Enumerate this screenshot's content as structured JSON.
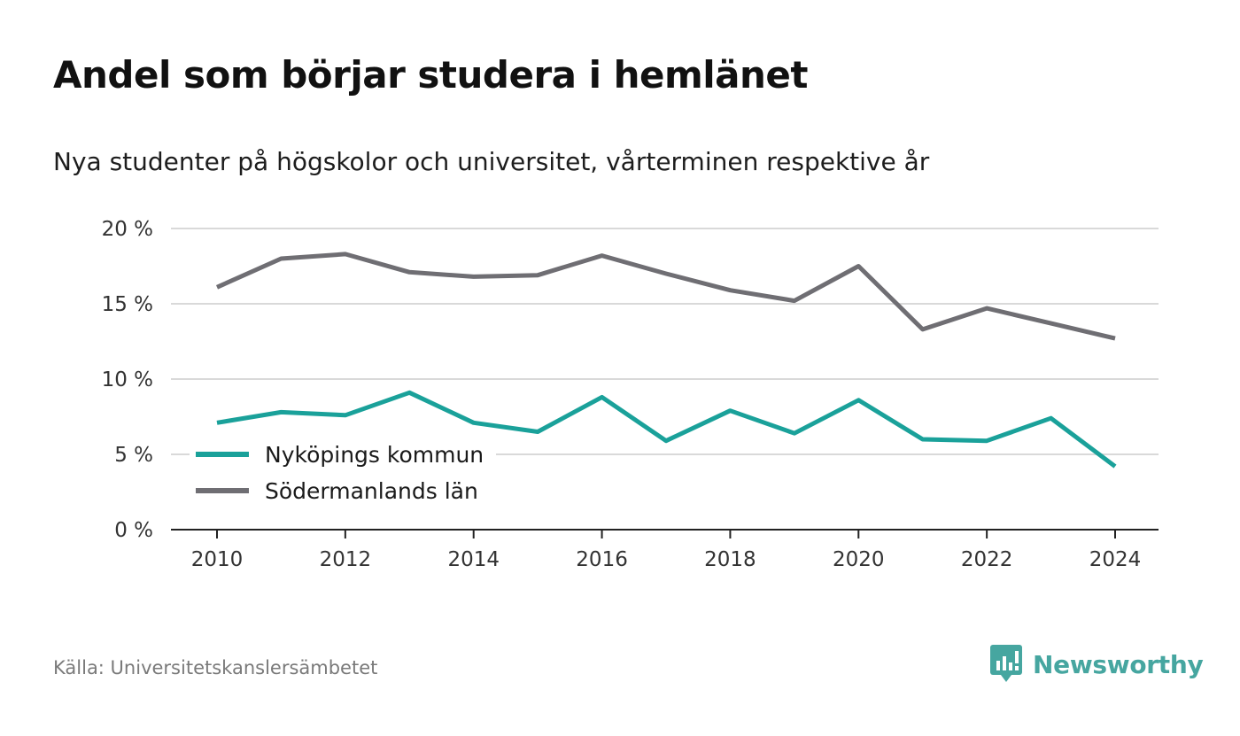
{
  "title": "Andel som börjar studera i hemlänet",
  "subtitle": "Nya studenter på högskolor och universitet, vårterminen respektive år",
  "source": "Källa: Universitetskanslersämbetet",
  "brand": {
    "name": "Newsworthy",
    "icon": "newsworthy-logo-icon",
    "color": "#46a6a0"
  },
  "chart_data": {
    "type": "line",
    "title": "Andel som börjar studera i hemlänet",
    "subtitle": "Nya studenter på högskolor och universitet, vårterminen respektive år",
    "xlabel": "",
    "ylabel": "",
    "x": [
      2010,
      2011,
      2012,
      2013,
      2014,
      2015,
      2016,
      2017,
      2018,
      2019,
      2020,
      2021,
      2022,
      2023,
      2024
    ],
    "x_ticks": [
      "2010",
      "2012",
      "2014",
      "2016",
      "2018",
      "2020",
      "2022",
      "2024"
    ],
    "y_ticks": [
      "0 %",
      "5 %",
      "10 %",
      "15 %",
      "20 %"
    ],
    "ylim": [
      0,
      20
    ],
    "grid": true,
    "legend_position": "bottom-left",
    "series": [
      {
        "name": "Nyköpings kommun",
        "color": "#1aa19a",
        "values": [
          7.1,
          7.8,
          7.6,
          9.1,
          7.1,
          6.5,
          8.8,
          5.9,
          7.9,
          6.4,
          8.6,
          6.0,
          5.9,
          7.4,
          4.2
        ]
      },
      {
        "name": "Södermanlands län",
        "color": "#6f6e73",
        "values": [
          16.1,
          18.0,
          18.3,
          17.1,
          16.8,
          16.9,
          18.2,
          17.0,
          15.9,
          15.2,
          17.5,
          13.3,
          14.7,
          13.7,
          12.7
        ]
      }
    ]
  }
}
